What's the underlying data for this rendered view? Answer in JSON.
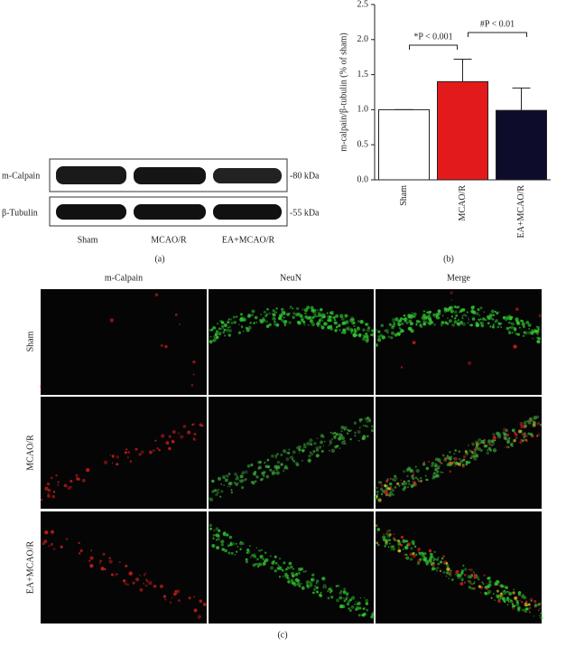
{
  "chart_data": {
    "type": "bar",
    "ylabel": "m-calpain/β-tubulin (% of sham)",
    "categories": [
      "Sham",
      "MCAO/R",
      "EA+MCAO/R"
    ],
    "values": [
      1.0,
      1.4,
      0.99
    ],
    "errors": [
      0,
      0.32,
      0.32
    ],
    "colors": [
      "#ffffff",
      "#e31a1c",
      "#0d0d2b"
    ],
    "ylim": [
      0,
      2.5
    ],
    "yticks": [
      {
        "value": 0,
        "label": "0.0"
      },
      {
        "value": 0.5,
        "label": "0.5"
      },
      {
        "value": 1,
        "label": "1.0"
      },
      {
        "value": 1.5,
        "label": "1.5"
      },
      {
        "value": 2,
        "label": "2.0"
      },
      {
        "value": 2.5,
        "label": "2.5"
      }
    ],
    "annotations": [
      "*P < 0.001",
      "#P < 0.01"
    ],
    "panel_label": "(b)"
  },
  "blot": {
    "rows": [
      "m-Calpain",
      "β-Tubulin"
    ],
    "markers": [
      "-80 kDa",
      "-55 kDa"
    ],
    "lanes": [
      "Sham",
      "MCAO/R",
      "EA+MCAO/R"
    ],
    "panel_label": "(a)"
  },
  "micrograph": {
    "columns": [
      "m-Calpain",
      "NeuN",
      "Merge"
    ],
    "rows": [
      "Sham",
      "MCAO/R",
      "EA+MCAO/R"
    ],
    "panel_label": "(c)"
  }
}
